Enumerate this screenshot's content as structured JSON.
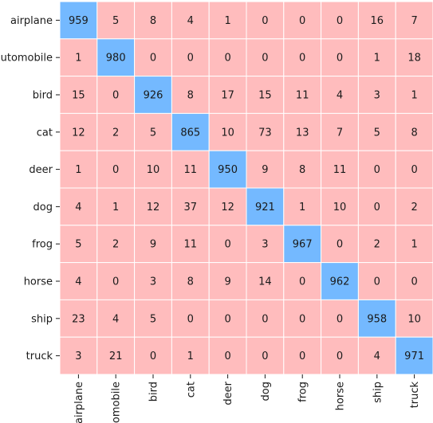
{
  "chart_data": {
    "type": "heatmap",
    "title": "",
    "xlabel": "",
    "ylabel": "",
    "row_labels": [
      "airplane",
      "automobile",
      "bird",
      "cat",
      "deer",
      "dog",
      "frog",
      "horse",
      "ship",
      "truck"
    ],
    "col_labels": [
      "airplane",
      "automobile",
      "bird",
      "cat",
      "deer",
      "dog",
      "frog",
      "horse",
      "ship",
      "truck"
    ],
    "values": [
      [
        959,
        5,
        8,
        4,
        1,
        0,
        0,
        0,
        16,
        7
      ],
      [
        1,
        980,
        0,
        0,
        0,
        0,
        0,
        0,
        1,
        18
      ],
      [
        15,
        0,
        926,
        8,
        17,
        15,
        11,
        4,
        3,
        1
      ],
      [
        12,
        2,
        5,
        865,
        10,
        73,
        13,
        7,
        5,
        8
      ],
      [
        1,
        0,
        10,
        11,
        950,
        9,
        8,
        11,
        0,
        0
      ],
      [
        4,
        1,
        12,
        37,
        12,
        921,
        1,
        10,
        0,
        2
      ],
      [
        5,
        2,
        9,
        11,
        0,
        3,
        967,
        0,
        2,
        1
      ],
      [
        4,
        0,
        3,
        8,
        9,
        14,
        0,
        962,
        0,
        0
      ],
      [
        23,
        4,
        5,
        0,
        0,
        0,
        0,
        0,
        958,
        10
      ],
      [
        3,
        21,
        0,
        1,
        0,
        0,
        0,
        0,
        4,
        971
      ]
    ],
    "colors": {
      "diagonal": "#74b9ff",
      "off_diagonal": "#ffbcbd",
      "grid": "#ffffff",
      "text": "#1a1a1a"
    }
  }
}
